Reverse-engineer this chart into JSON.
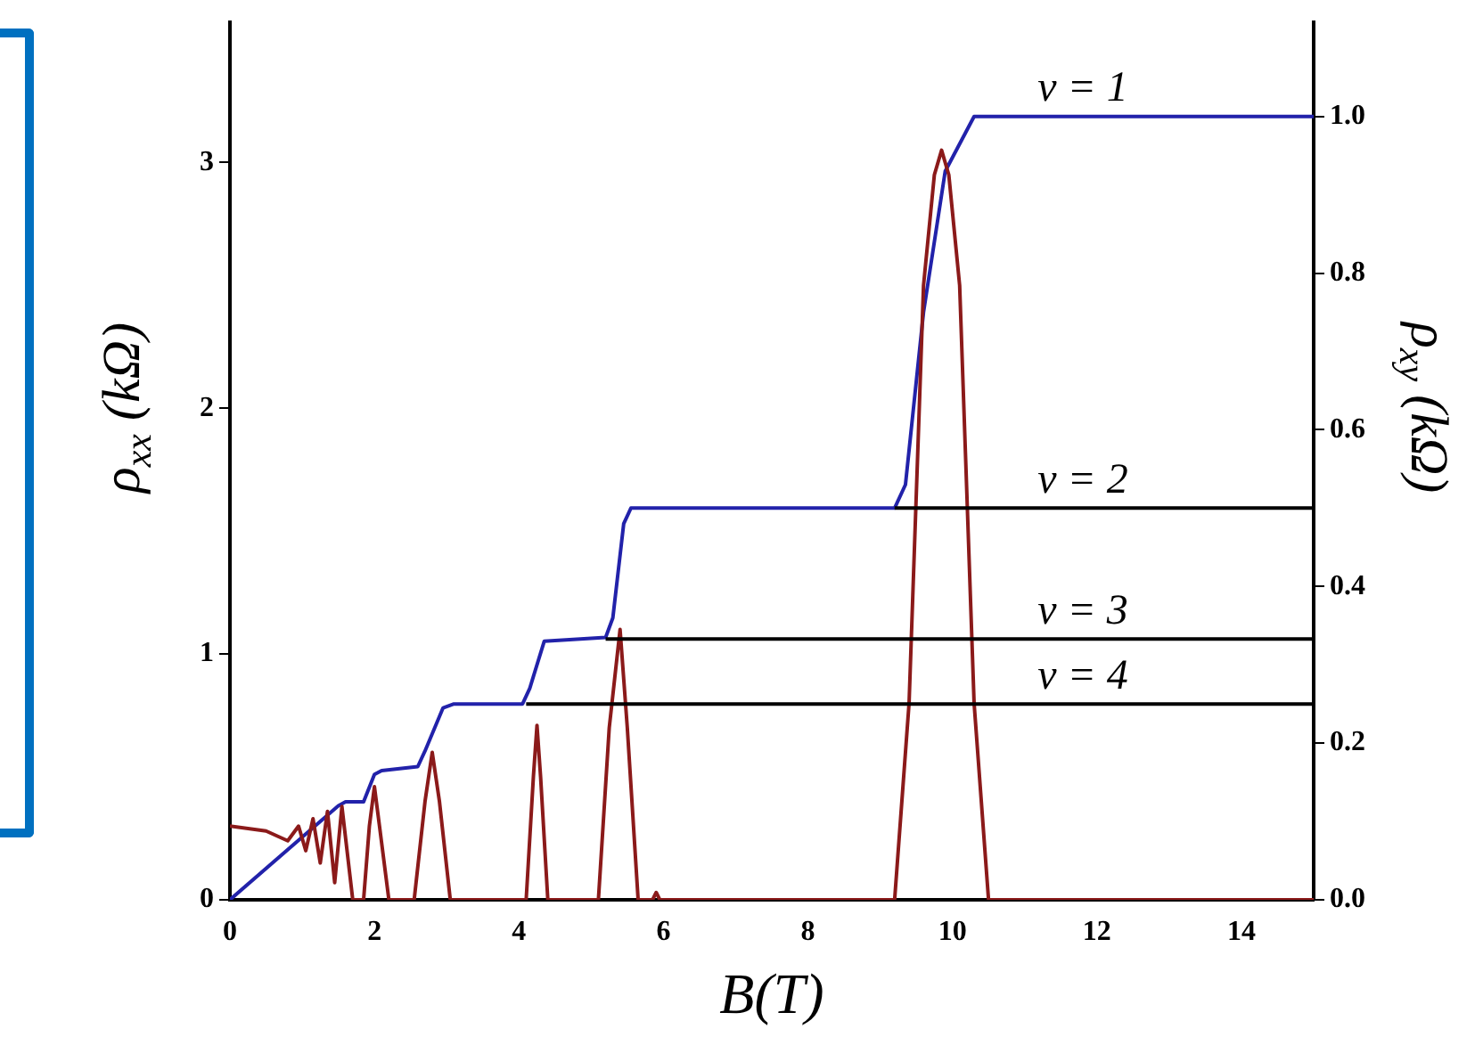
{
  "chart_data": {
    "type": "line",
    "xlabel": "B(T)",
    "ylabel": "ρ$_{xx}$ (kΩ)",
    "y2label": "ρ$_{xy}$ (kΩ)",
    "xlim": [
      0,
      15
    ],
    "xticks": [
      0,
      2,
      4,
      6,
      8,
      10,
      12,
      14
    ],
    "ylim": [
      0,
      3.57
    ],
    "yticks": [
      0,
      1,
      2,
      3
    ],
    "y2lim": [
      0,
      1.12
    ],
    "y2ticks": [
      {
        "value": 0,
        "label": "0.0"
      },
      {
        "value": 0.2,
        "label": "0.2"
      },
      {
        "value": 0.4,
        "label": "0.4"
      },
      {
        "value": 0.6,
        "label": "0.6"
      },
      {
        "value": 0.8,
        "label": "0.8"
      },
      {
        "value": 1,
        "label": "1.0"
      }
    ],
    "grid": false,
    "legend": false,
    "marker": "none",
    "line_style": "solid",
    "series": [
      {
        "name": "ν = 2",
        "color": "#000000",
        "axis": "y2",
        "x": [
          9.2,
          15
        ],
        "values": [
          0.5,
          0.5
        ]
      },
      {
        "name": "ν = 3",
        "color": "#000000",
        "axis": "y2",
        "x": [
          5.2,
          15
        ],
        "values": [
          0.333,
          0.333
        ]
      },
      {
        "name": "ν = 4",
        "color": "#000000",
        "axis": "y2",
        "x": [
          4.1,
          15
        ],
        "values": [
          0.25,
          0.25
        ]
      },
      {
        "color": "#8b1a1a",
        "axis": "y",
        "x": [
          0,
          0.5,
          0.8,
          0.95,
          1.05,
          1.15,
          1.25,
          1.35,
          1.45,
          1.55,
          1.7,
          1.85,
          1.93,
          2.0,
          2.07,
          2.2,
          2.55,
          2.7,
          2.8,
          2.9,
          3.05,
          4.1,
          4.2,
          4.25,
          4.3,
          4.4,
          5.1,
          5.25,
          5.4,
          5.5,
          5.65,
          5.85,
          5.9,
          5.95,
          9.2,
          9.4,
          9.6,
          9.75,
          9.85,
          9.95,
          10.1,
          10.3,
          10.5,
          15
        ],
        "values": [
          0.3,
          0.28,
          0.24,
          0.3,
          0.2,
          0.33,
          0.15,
          0.36,
          0.07,
          0.38,
          0,
          0,
          0.3,
          0.46,
          0.3,
          0,
          0,
          0.4,
          0.6,
          0.4,
          0,
          0,
          0.5,
          0.71,
          0.5,
          0,
          0,
          0.7,
          1.1,
          0.7,
          0,
          0,
          0.03,
          0,
          0,
          0.8,
          2.5,
          2.95,
          3.05,
          2.95,
          2.5,
          0.8,
          0,
          0
        ]
      },
      {
        "color": "#2222aa",
        "axis": "y2",
        "x": [
          0,
          1.5,
          1.6,
          1.85,
          2.0,
          2.1,
          2.6,
          2.7,
          2.95,
          3.1,
          4.05,
          4.15,
          4.35,
          5.2,
          5.3,
          5.45,
          5.55,
          9.2,
          9.35,
          9.6,
          9.9,
          10.3,
          15
        ],
        "values": [
          0,
          0.12,
          0.125,
          0.125,
          0.16,
          0.165,
          0.17,
          0.19,
          0.245,
          0.25,
          0.25,
          0.27,
          0.33,
          0.335,
          0.36,
          0.48,
          0.5,
          0.5,
          0.53,
          0.75,
          0.93,
          1.0,
          1.0
        ]
      }
    ],
    "annotations": [
      "ν = 1"
    ]
  }
}
